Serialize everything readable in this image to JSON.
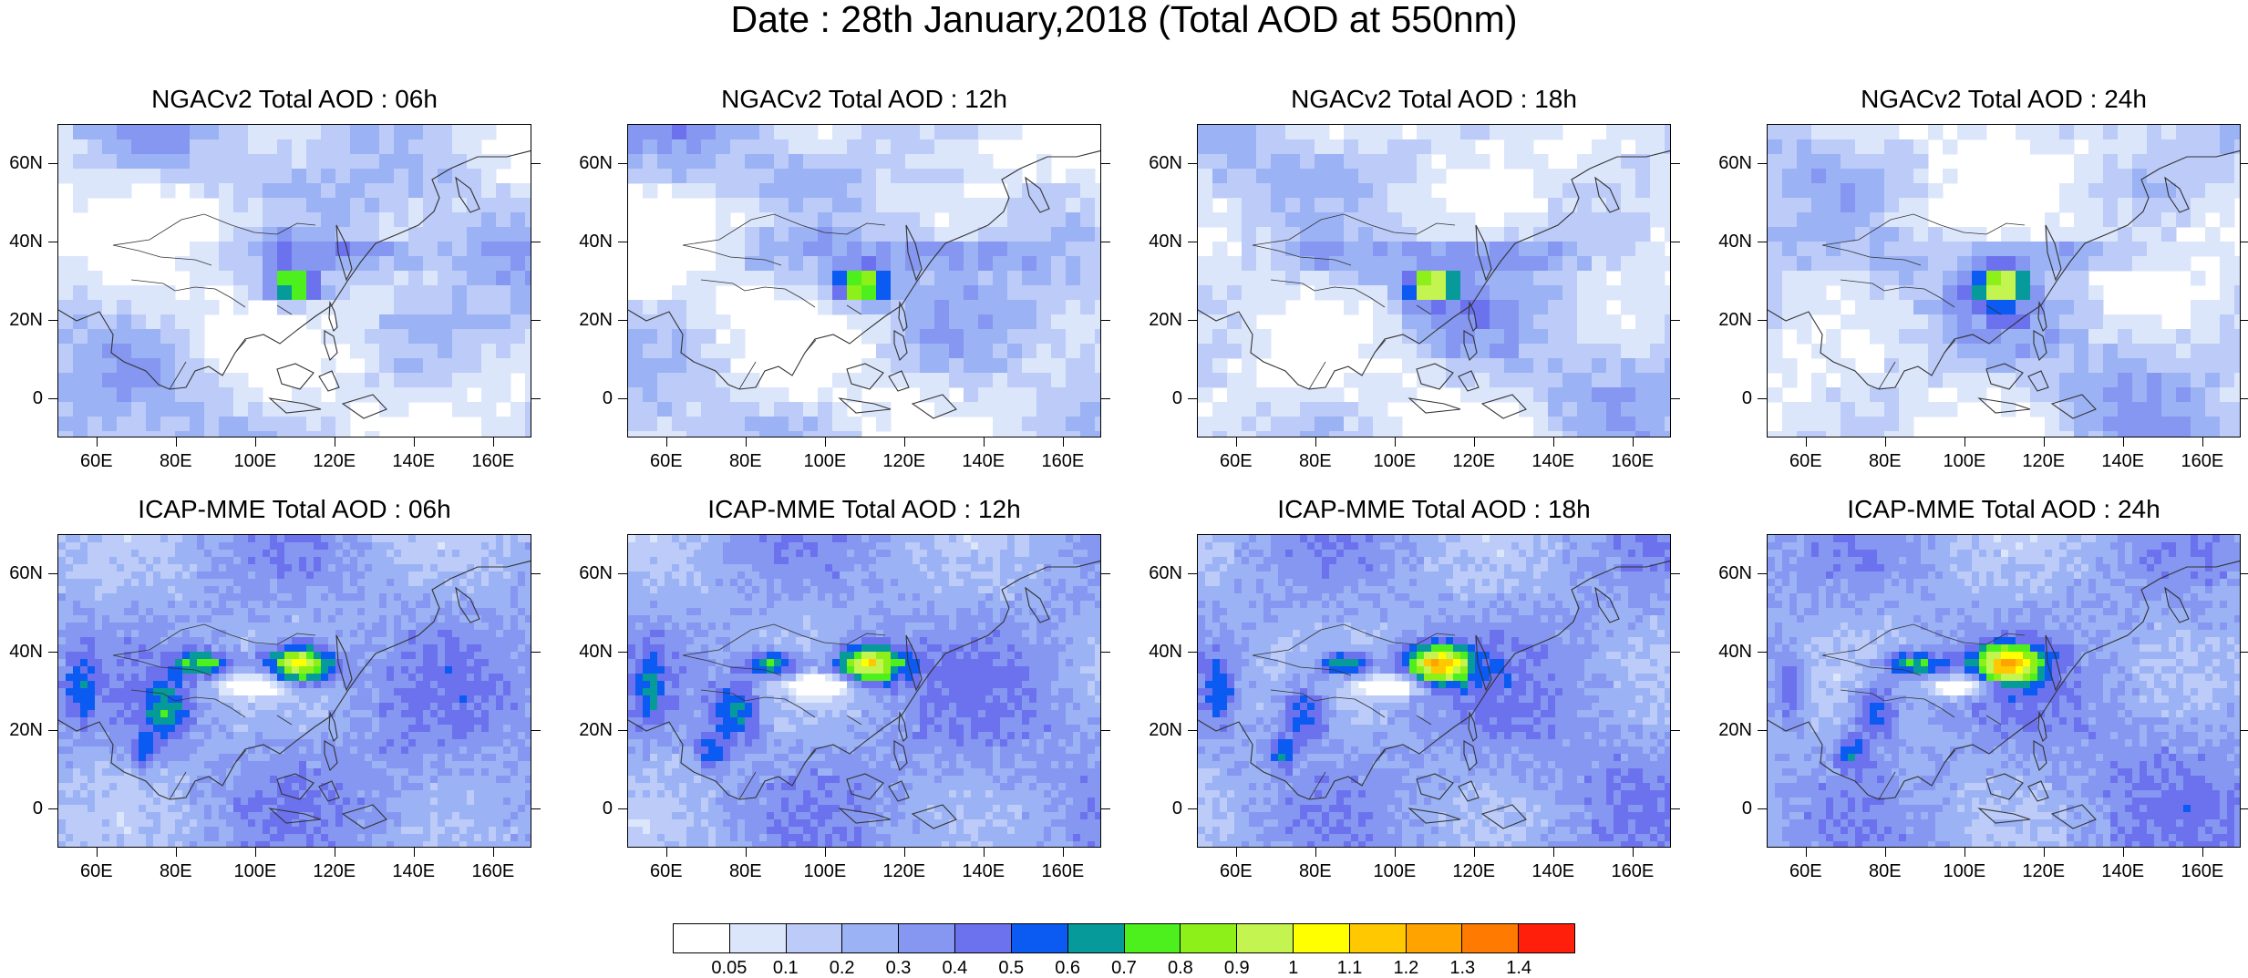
{
  "title": "Date : 28th January,2018 (Total AOD at 550nm)",
  "panels": [
    {
      "title": "NGACv2 Total AOD : 06h",
      "model": "NGACv2",
      "lead": "06h"
    },
    {
      "title": "NGACv2 Total AOD : 12h",
      "model": "NGACv2",
      "lead": "12h"
    },
    {
      "title": "NGACv2 Total AOD : 18h",
      "model": "NGACv2",
      "lead": "18h"
    },
    {
      "title": "NGACv2 Total AOD : 24h",
      "model": "NGACv2",
      "lead": "24h"
    },
    {
      "title": "ICAP-MME Total AOD : 06h",
      "model": "ICAP-MME",
      "lead": "06h"
    },
    {
      "title": "ICAP-MME Total AOD : 12h",
      "model": "ICAP-MME",
      "lead": "12h"
    },
    {
      "title": "ICAP-MME Total AOD : 18h",
      "model": "ICAP-MME",
      "lead": "18h"
    },
    {
      "title": "ICAP-MME Total AOD : 24h",
      "model": "ICAP-MME",
      "lead": "24h"
    }
  ],
  "lat_labels": [
    "60N",
    "40N",
    "20N",
    "0"
  ],
  "lon_labels": [
    "60E",
    "80E",
    "100E",
    "120E",
    "140E",
    "160E"
  ],
  "colorbar": {
    "colors": [
      "#ffffff",
      "#dce6fb",
      "#bccbf8",
      "#9bb2f4",
      "#8597f1",
      "#6c72ee",
      "#0b5af1",
      "#069a9a",
      "#4df01c",
      "#8ef019",
      "#c3f44f",
      "#ffff00",
      "#ffc800",
      "#ffa300",
      "#ff7a00",
      "#ff1f0a"
    ],
    "labels": [
      "0.05",
      "0.1",
      "0.2",
      "0.3",
      "0.4",
      "0.5",
      "0.6",
      "0.7",
      "0.8",
      "0.9",
      "1",
      "1.1",
      "1.2",
      "1.3",
      "1.4"
    ]
  }
}
